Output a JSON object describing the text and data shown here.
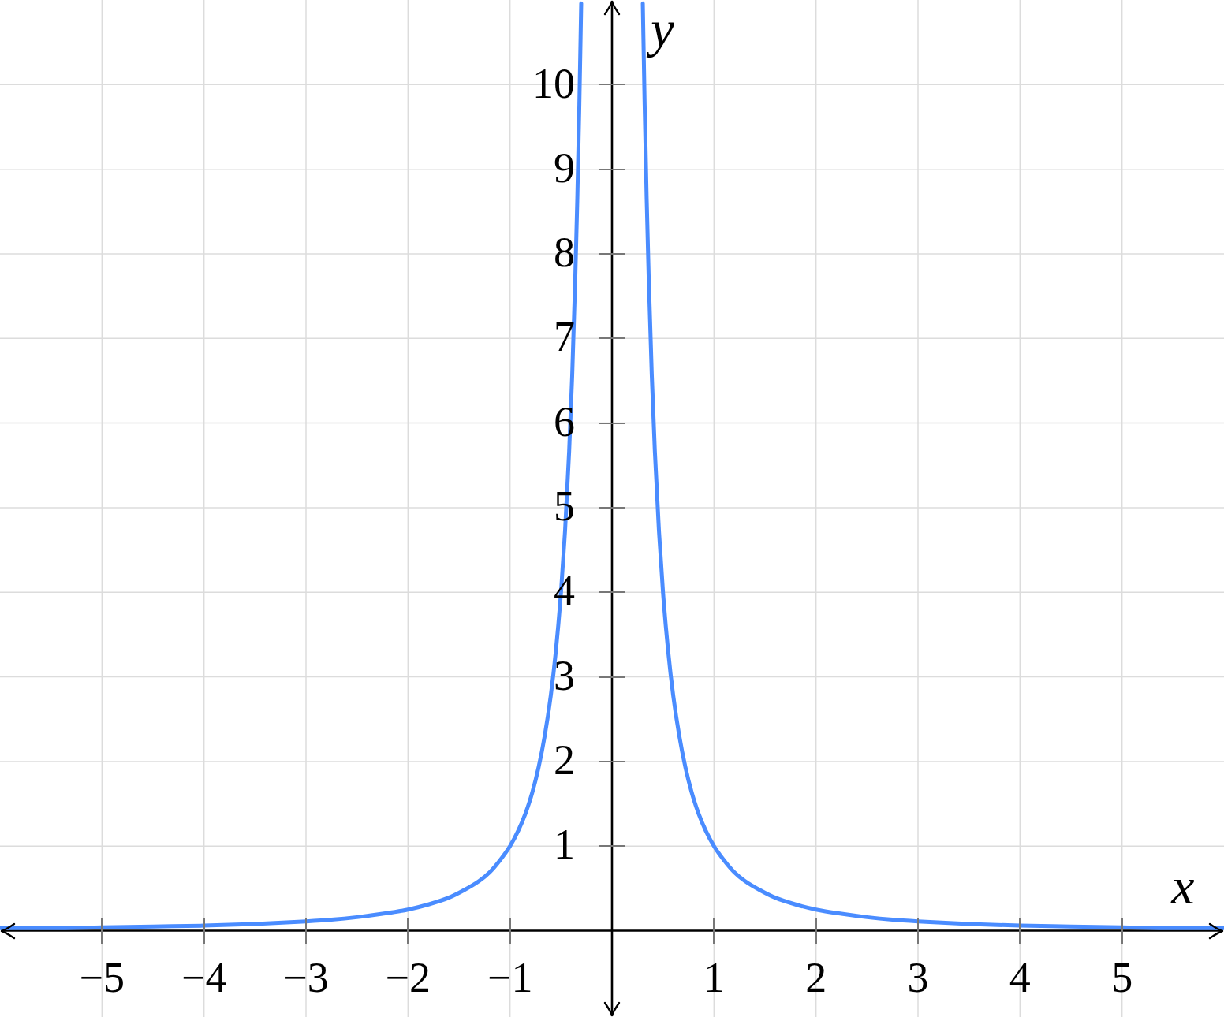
{
  "chart_data": {
    "type": "line",
    "xlabel": "x",
    "ylabel": "y",
    "x": [
      -6,
      -5.5,
      -5,
      -4.5,
      -4,
      -3.5,
      -3,
      -2.75,
      -2.5,
      -2.25,
      -2,
      -1.8,
      -1.6,
      -1.45,
      -1.3,
      -1.2,
      -1.1,
      -1,
      -0.92,
      -0.85,
      -0.78,
      -0.72,
      -0.66,
      -0.6,
      -0.55,
      -0.5,
      -0.46,
      -0.42,
      -0.39,
      -0.36,
      -0.34,
      -0.32,
      -0.302,
      0,
      0.302,
      0.32,
      0.34,
      0.36,
      0.39,
      0.42,
      0.46,
      0.5,
      0.55,
      0.6,
      0.66,
      0.72,
      0.78,
      0.85,
      0.92,
      1,
      1.1,
      1.2,
      1.3,
      1.45,
      1.6,
      1.8,
      2,
      2.25,
      2.5,
      2.75,
      3,
      3.5,
      4,
      4.5,
      5,
      5.5,
      6
    ],
    "series": [
      {
        "color": "#4a8cff",
        "values": [
          0.03,
          0.03,
          0.04,
          0.05,
          0.06,
          0.08,
          0.11,
          0.13,
          0.16,
          0.2,
          0.25,
          0.31,
          0.39,
          0.48,
          0.59,
          0.69,
          0.83,
          1,
          1.18,
          1.38,
          1.64,
          1.93,
          2.3,
          2.78,
          3.31,
          4,
          4.73,
          5.67,
          6.57,
          7.72,
          8.65,
          9.77,
          10.96,
          null,
          10.96,
          9.77,
          8.65,
          7.72,
          6.57,
          5.67,
          4.73,
          4,
          3.31,
          2.78,
          2.3,
          1.93,
          1.64,
          1.38,
          1.18,
          1,
          0.83,
          0.69,
          0.59,
          0.48,
          0.39,
          0.31,
          0.25,
          0.2,
          0.16,
          0.13,
          0.11,
          0.08,
          0.06,
          0.05,
          0.04,
          0.03,
          0.03
        ]
      }
    ],
    "xlim": [
      -6,
      6
    ],
    "ylim": [
      -1.02,
      11
    ],
    "xticks": [
      {
        "value": -5,
        "label": "−5"
      },
      {
        "value": -4,
        "label": "−4"
      },
      {
        "value": -3,
        "label": "−3"
      },
      {
        "value": -2,
        "label": "−2"
      },
      {
        "value": -1,
        "label": "−1"
      },
      1,
      2,
      3,
      4,
      5
    ],
    "yticks": [
      1,
      2,
      3,
      4,
      5,
      6,
      7,
      8,
      9,
      10
    ],
    "grid": true,
    "marker": "none",
    "line_style": "solid"
  }
}
